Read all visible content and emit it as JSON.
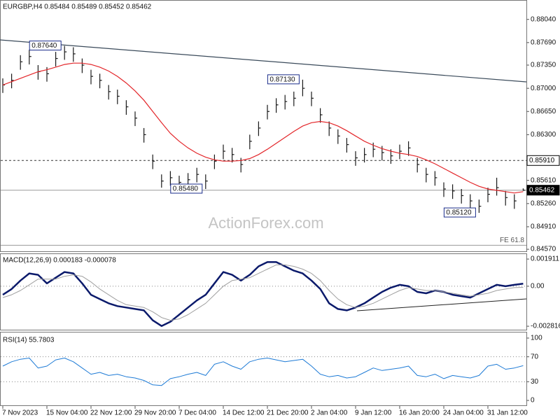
{
  "chart_data": [
    {
      "type": "ohlc",
      "title": "EURGBP,H4  0.85484 0.85489 0.85452 0.85462",
      "watermark": "ActionForex.com",
      "categories": [
        "7 Nov 2023",
        null,
        null,
        null,
        null,
        "15 Nov 04:00",
        null,
        null,
        null,
        null,
        "22 Nov 12:00",
        null,
        null,
        null,
        null,
        "29 Nov 20:00",
        null,
        null,
        null,
        null,
        "7 Dec 04:00",
        null,
        null,
        null,
        null,
        "14 Dec 12:00",
        null,
        null,
        null,
        null,
        "21 Dec 20:00",
        null,
        null,
        null,
        null,
        "2 Jan 04:00",
        null,
        null,
        null,
        null,
        "9 Jan 12:00",
        null,
        null,
        null,
        null,
        "16 Jan 20:00",
        null,
        null,
        null,
        null,
        "24 Jan 04:00",
        null,
        null,
        null,
        null,
        "31 Jan 12:00",
        null,
        null,
        null,
        null
      ],
      "high": [
        0.8715,
        0.8722,
        0.875,
        0.8758,
        0.8735,
        0.8732,
        0.8755,
        0.8764,
        0.8762,
        0.8745,
        0.8728,
        0.8722,
        0.8705,
        0.8698,
        0.8682,
        0.8665,
        0.864,
        0.86,
        0.857,
        0.8575,
        0.8568,
        0.8572,
        0.858,
        0.857,
        0.86,
        0.8615,
        0.861,
        0.8595,
        0.863,
        0.865,
        0.8675,
        0.8685,
        0.869,
        0.8695,
        0.8713,
        0.8695,
        0.867,
        0.865,
        0.8638,
        0.8625,
        0.8605,
        0.861,
        0.8618,
        0.8613,
        0.8608,
        0.8615,
        0.862,
        0.8595,
        0.858,
        0.8575,
        0.8558,
        0.8555,
        0.8548,
        0.854,
        0.8532,
        0.855,
        0.8565,
        0.8545,
        0.854,
        0.85489
      ],
      "low": [
        0.8693,
        0.87,
        0.8728,
        0.8736,
        0.8713,
        0.871,
        0.8733,
        0.8743,
        0.874,
        0.8723,
        0.8706,
        0.87,
        0.8683,
        0.8676,
        0.866,
        0.8643,
        0.8618,
        0.8578,
        0.855,
        0.8553,
        0.855,
        0.855,
        0.8558,
        0.8548,
        0.8578,
        0.8593,
        0.8588,
        0.8573,
        0.8608,
        0.8628,
        0.8653,
        0.8663,
        0.8668,
        0.8673,
        0.8688,
        0.8673,
        0.8648,
        0.8628,
        0.8616,
        0.8603,
        0.8583,
        0.8588,
        0.8596,
        0.8591,
        0.8586,
        0.8593,
        0.8598,
        0.8573,
        0.8558,
        0.8553,
        0.8536,
        0.8533,
        0.8526,
        0.8518,
        0.8512,
        0.8528,
        0.8538,
        0.8523,
        0.8518,
        0.85452
      ],
      "close": [
        0.8705,
        0.8712,
        0.874,
        0.8748,
        0.8725,
        0.8722,
        0.8745,
        0.8755,
        0.8752,
        0.8735,
        0.8718,
        0.8712,
        0.8695,
        0.8688,
        0.8672,
        0.8655,
        0.863,
        0.859,
        0.856,
        0.8565,
        0.8558,
        0.8562,
        0.857,
        0.856,
        0.859,
        0.8605,
        0.86,
        0.8585,
        0.862,
        0.864,
        0.8665,
        0.8675,
        0.868,
        0.8685,
        0.87,
        0.8685,
        0.866,
        0.864,
        0.8628,
        0.8615,
        0.8595,
        0.86,
        0.8608,
        0.8603,
        0.8598,
        0.8605,
        0.861,
        0.8585,
        0.857,
        0.8565,
        0.8548,
        0.8545,
        0.8538,
        0.853,
        0.8522,
        0.854,
        0.855,
        0.8535,
        0.853,
        0.85462
      ],
      "color": "#1a1a1a",
      "moving_average": [
        0.8705,
        0.871,
        0.8715,
        0.872,
        0.8725,
        0.8728,
        0.8732,
        0.8736,
        0.8738,
        0.8738,
        0.8736,
        0.8732,
        0.8726,
        0.8718,
        0.8708,
        0.8696,
        0.8682,
        0.8665,
        0.8648,
        0.8632,
        0.862,
        0.861,
        0.8602,
        0.8596,
        0.8592,
        0.859,
        0.859,
        0.8591,
        0.8594,
        0.86,
        0.8608,
        0.8617,
        0.8626,
        0.8635,
        0.8643,
        0.8648,
        0.865,
        0.8648,
        0.8643,
        0.8636,
        0.8628,
        0.862,
        0.8614,
        0.8609,
        0.8605,
        0.8602,
        0.86,
        0.8597,
        0.8592,
        0.8586,
        0.8579,
        0.8572,
        0.8565,
        0.8558,
        0.8552,
        0.8548,
        0.8546,
        0.8544,
        0.8542,
        0.8544
      ],
      "moving_average_color": "#e3262a",
      "ylim": [
        0.8455,
        0.8828
      ],
      "yticks": [
        {
          "value": 0.8804,
          "label": "0.88040"
        },
        {
          "value": 0.8769,
          "label": "0.87690"
        },
        {
          "value": 0.8735,
          "label": "0.87350"
        },
        {
          "value": 0.87,
          "label": "0.87000"
        },
        {
          "value": 0.8665,
          "label": "0.86650"
        },
        {
          "value": 0.863,
          "label": "0.86300"
        },
        {
          "value": 0.8561,
          "label": "0.85610"
        },
        {
          "value": 0.8526,
          "label": "0.85260"
        },
        {
          "value": 0.8491,
          "label": "0.84910"
        },
        {
          "value": 0.8457,
          "label": "0.84570"
        }
      ],
      "reference_lines": [
        {
          "value": 0.8591,
          "label": "0.85910",
          "box": "white",
          "dashed": true
        },
        {
          "value": 0.85462,
          "label": "0.85462",
          "box": "black",
          "dashed": false
        },
        {
          "value": 0.8463,
          "label": "FE 61.8",
          "box": "none",
          "dashed": false
        }
      ],
      "annotations": [
        {
          "value": 0.8764,
          "label": "0.87640",
          "at": "high"
        },
        {
          "value": 0.8713,
          "label": "0.87130",
          "at": "high"
        },
        {
          "value": 0.8548,
          "label": "0.85480",
          "at": "low"
        },
        {
          "value": 0.8512,
          "label": "0.85120",
          "at": "low"
        }
      ]
    },
    {
      "type": "line",
      "title": "MACD(12,26,9) 0.000183 -0.000078",
      "series": [
        {
          "color": "#0b1a6b",
          "width": 2.5,
          "values": [
            -0.0006,
            -0.0002,
            0.0004,
            0.0009,
            0.0008,
            0.0002,
            0.0006,
            0.001,
            0.0009,
            0.0002,
            -0.0006,
            -0.0009,
            -0.0012,
            -0.0014,
            -0.0015,
            -0.0016,
            -0.0017,
            -0.0024,
            -0.0028,
            -0.0025,
            -0.002,
            -0.0015,
            -0.001,
            -0.0006,
            0.0002,
            0.001,
            0.0008,
            0.0004,
            0.0008,
            0.0014,
            0.0017,
            0.0017,
            0.0014,
            0.0011,
            0.0009,
            0.0004,
            -0.0002,
            -0.0012,
            -0.0016,
            -0.0017,
            -0.0015,
            -0.0012,
            -0.0008,
            -0.0004,
            -0.0001,
            0.0001,
            0,
            -0.0004,
            -0.0005,
            -0.0003,
            -0.0004,
            -0.0006,
            -0.0007,
            -0.0008,
            -0.0005,
            -0.0002,
            0.0001,
            0,
            0.0001,
            0.000183
          ]
        },
        {
          "color": "#a0a0a0",
          "width": 1,
          "values": [
            -0.0008,
            -0.0006,
            -0.0003,
            0.0001,
            0.0005,
            0.0005,
            0.0005,
            0.0007,
            0.0008,
            0.0007,
            0.0003,
            -0.0002,
            -0.0006,
            -0.001,
            -0.0013,
            -0.0014,
            -0.0015,
            -0.0018,
            -0.0022,
            -0.0024,
            -0.0023,
            -0.002,
            -0.0016,
            -0.0012,
            -0.0006,
            0,
            0.0004,
            0.0005,
            0.0006,
            0.0009,
            0.0012,
            0.0015,
            0.0015,
            0.0014,
            0.0012,
            0.0009,
            0.0004,
            -0.0003,
            -0.0009,
            -0.0013,
            -0.0015,
            -0.0014,
            -0.0012,
            -0.0009,
            -0.0006,
            -0.0003,
            -0.0001,
            -0.0002,
            -0.0003,
            -0.0003,
            -0.0004,
            -0.0005,
            -0.0006,
            -0.0007,
            -0.0006,
            -0.0005,
            -0.0003,
            -0.0002,
            -0.0001,
            -7.8e-05
          ]
        }
      ],
      "ylim": [
        -0.00301,
        0.00226
      ],
      "yticks": [
        0.001911,
        {
          "value": 0,
          "label": "0.00"
        },
        -0.002816
      ],
      "levels": [
        0
      ]
    },
    {
      "type": "line",
      "title": "RSI(14) 55.7803",
      "series": [
        {
          "color": "#1e7bd6",
          "width": 1,
          "values": [
            55,
            62,
            66,
            68,
            52,
            55,
            65,
            68,
            62,
            52,
            42,
            45,
            40,
            42,
            38,
            36,
            32,
            25,
            24,
            35,
            38,
            42,
            45,
            40,
            58,
            62,
            55,
            50,
            62,
            66,
            68,
            65,
            62,
            64,
            66,
            55,
            42,
            38,
            40,
            36,
            38,
            45,
            52,
            48,
            50,
            52,
            55,
            40,
            38,
            42,
            35,
            40,
            38,
            36,
            40,
            55,
            58,
            50,
            52,
            55.7803
          ]
        }
      ],
      "ylim": [
        -6.7,
        106.7
      ],
      "yticks": [
        100,
        70,
        30,
        0
      ],
      "levels": [
        70,
        30
      ]
    }
  ]
}
